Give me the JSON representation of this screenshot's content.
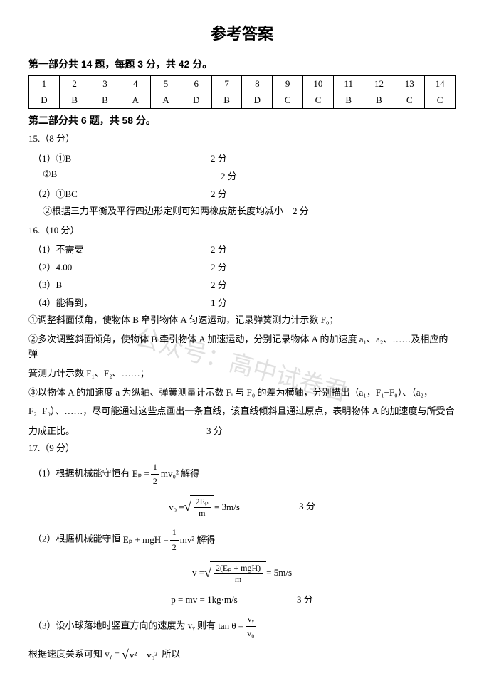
{
  "title": "参考答案",
  "part1": {
    "header": "第一部分共 14 题，每题 3 分，共 42 分。",
    "numbers": [
      "1",
      "2",
      "3",
      "4",
      "5",
      "6",
      "7",
      "8",
      "9",
      "10",
      "11",
      "12",
      "13",
      "14"
    ],
    "answers": [
      "D",
      "B",
      "B",
      "A",
      "A",
      "D",
      "B",
      "D",
      "C",
      "C",
      "B",
      "B",
      "C",
      "C"
    ]
  },
  "part2": {
    "header": "第二部分共 6 题，共 58 分。"
  },
  "q15": {
    "head": "15.（8 分）",
    "r1_left": "（1）①B",
    "r1_pts": "2 分",
    "r2_left": "②B",
    "r2_pts": "2 分",
    "r3_left": "（2）①BC",
    "r3_pts": "2 分",
    "r4": "②根据三力平衡及平行四边形定则可知两橡皮筋长度均减小　2 分"
  },
  "q16": {
    "head": "16.（10 分）",
    "r1_left": "（1）不需要",
    "r1_pts": "2 分",
    "r2_left": "（2）4.00",
    "r2_pts": "2 分",
    "r3_left": "（3）B",
    "r3_pts": "2 分",
    "r4_left": "（4）能得到，",
    "r4_pts": "1 分",
    "step1": "①调整斜面倾角，使物体 B 牵引物体 A 匀速运动，记录弹簧测力计示数 F₀；",
    "step2a": "②多次调整斜面倾角，使物体 B 牵引物体 A 加速运动，分别记录物体 A 的加速度 a₁、a₂、……及相应的弹",
    "step2b": "簧测力计示数 F₁、F₂、……；",
    "step3a": "③以物体 A 的加速度 a 为纵轴、弹簧测量计示数 Fᵢ 与 F₀ 的差为横轴，分别描出（a₁，F₁−F₀）、（a₂，",
    "step3b": "F₂−F₀）、……，尽可能通过这些点画出一条直线，该直线倾斜且通过原点，表明物体 A 的加速度与所受合",
    "step3c": "力成正比。",
    "step3_pts": "3 分"
  },
  "q17": {
    "head": "17.（9 分）",
    "p1_text": "（1）根据机械能守恒有 ",
    "p1_eq_lhs": "Eₚ = ",
    "p1_frac_num": "1",
    "p1_frac_den": "2",
    "p1_eq_rhs": " mv₀²  解得",
    "f1_lhs": "v₀ = ",
    "f1_rad_num": "2Eₚ",
    "f1_rad_den": "m",
    "f1_rhs": " = 3m/s",
    "f1_pts": "3 分",
    "p2_text": "（2）根据机械能守恒 ",
    "p2_eq_lhs": "Eₚ + mgH = ",
    "p2_frac_num": "1",
    "p2_frac_den": "2",
    "p2_eq_rhs": " mv²  解得",
    "f2_lhs": "v = ",
    "f2_rad_num": "2(Eₚ + mgH)",
    "f2_rad_den": "m",
    "f2_rhs": " = 5m/s",
    "f3_lhs": "p = mv = 1kg·m/s",
    "f3_pts": "3 分",
    "p3_text_a": "（3）设小球落地时竖直方向的速度为 vᵧ 则有 ",
    "p3_tan": "tan θ = ",
    "p3_frac_num": "vᵧ",
    "p3_frac_den": "v₀",
    "p4_text_a": "根据速度关系可知 vᵧ = ",
    "p4_rad": "v² − v₀²",
    "p4_text_b": "  所以"
  },
  "watermark": "公众号：高中试卷君"
}
